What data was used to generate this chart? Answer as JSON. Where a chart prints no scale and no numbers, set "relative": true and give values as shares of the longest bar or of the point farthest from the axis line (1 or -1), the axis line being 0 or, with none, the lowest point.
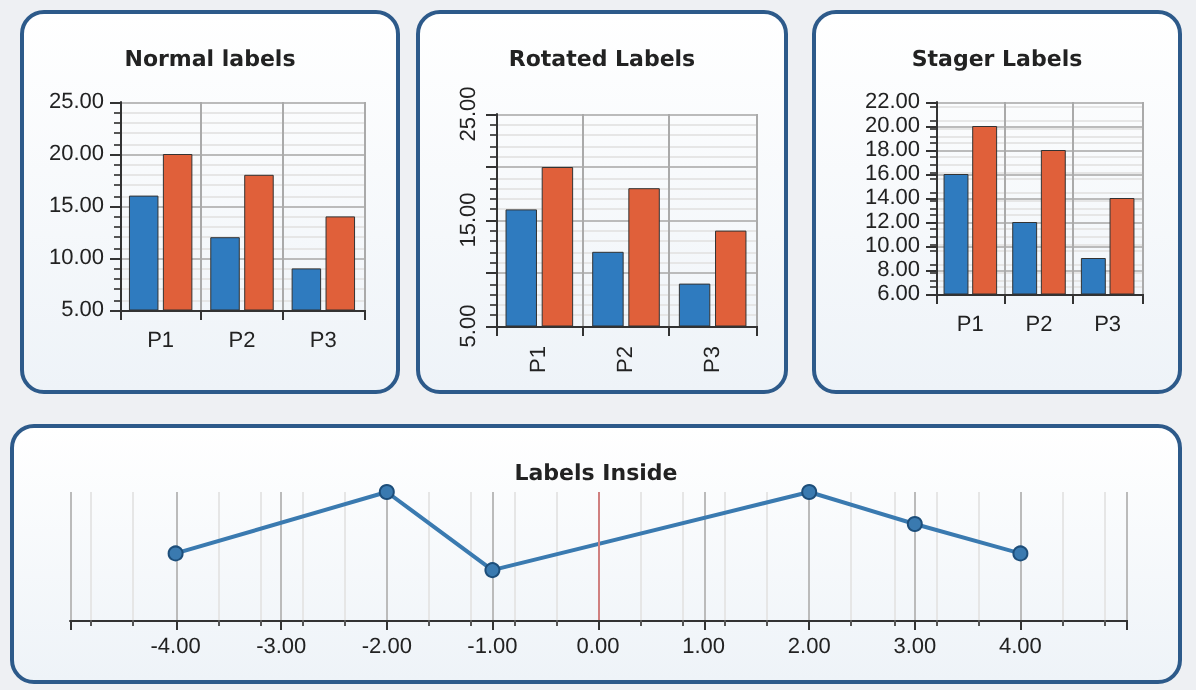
{
  "chart_data": [
    {
      "type": "bar",
      "title": "Normal labels",
      "categories": [
        "P1",
        "P2",
        "P3"
      ],
      "series": [
        {
          "color": "#2f7bbf",
          "values": [
            16,
            12,
            9
          ]
        },
        {
          "color": "#e0603a",
          "values": [
            20,
            18,
            14
          ]
        }
      ],
      "ylim": [
        5,
        25
      ],
      "yticks": [
        {
          "value": 5,
          "label": "5.00"
        },
        {
          "value": 10,
          "label": "10.00"
        },
        {
          "value": 15,
          "label": "15.00"
        },
        {
          "value": 20,
          "label": "20.00"
        },
        {
          "value": 25,
          "label": "25.00"
        }
      ],
      "grid": true
    },
    {
      "type": "bar",
      "title": "Rotated Labels",
      "categories": [
        "P1",
        "P2",
        "P3"
      ],
      "series": [
        {
          "color": "#2f7bbf",
          "values": [
            16,
            12,
            9
          ]
        },
        {
          "color": "#e0603a",
          "values": [
            20,
            18,
            14
          ]
        }
      ],
      "ylim": [
        5,
        25
      ],
      "yticks": [
        {
          "value": 5,
          "label": "5.00"
        },
        {
          "value": 10,
          "label": null
        },
        {
          "value": 15,
          "label": "15.00"
        },
        {
          "value": 20,
          "label": null
        },
        {
          "value": 25,
          "label": "25.00"
        }
      ],
      "grid": true
    },
    {
      "type": "bar",
      "title": "Stager Labels",
      "categories": [
        "P1",
        "P2",
        "P3"
      ],
      "series": [
        {
          "color": "#2f7bbf",
          "values": [
            16,
            12,
            9
          ]
        },
        {
          "color": "#e0603a",
          "values": [
            20,
            18,
            14
          ]
        }
      ],
      "ylim": [
        6,
        22
      ],
      "yticks": [
        {
          "value": 6,
          "label": "6.00"
        },
        {
          "value": 8,
          "label": "8.00"
        },
        {
          "value": 10,
          "label": "10.00"
        },
        {
          "value": 12,
          "label": "12.00"
        },
        {
          "value": 14,
          "label": "14.00"
        },
        {
          "value": 16,
          "label": "16.00"
        },
        {
          "value": 18,
          "label": "18.00"
        },
        {
          "value": 20,
          "label": "20.00"
        },
        {
          "value": 22,
          "label": "22.00"
        }
      ],
      "grid": true
    },
    {
      "type": "line",
      "title": "Labels Inside",
      "x": [
        -4,
        -2,
        -1,
        2,
        3,
        4
      ],
      "series": [
        {
          "color": "#3a7ab0",
          "values": [
            0.52,
            1,
            0.39,
            1,
            0.75,
            0.52
          ]
        }
      ],
      "relative": true,
      "marker": "circle",
      "tick_labels": "x",
      "grid": "x",
      "xlim": [
        -5,
        5
      ],
      "xticks": [
        {
          "value": -5,
          "label": null
        },
        {
          "value": -4,
          "label": "-4.00"
        },
        {
          "value": -3,
          "label": "-3.00"
        },
        {
          "value": -2,
          "label": "-2.00"
        },
        {
          "value": -1,
          "label": "-1.00"
        },
        {
          "value": 0,
          "label": "0.00"
        },
        {
          "value": 1,
          "label": "1.00"
        },
        {
          "value": 2,
          "label": "2.00"
        },
        {
          "value": 3,
          "label": "3.00"
        },
        {
          "value": 4,
          "label": "4.00"
        },
        {
          "value": 5,
          "label": null
        }
      ],
      "ref_lines": [
        {
          "axis": "x",
          "value": 0,
          "color": "#d08080"
        }
      ]
    }
  ]
}
